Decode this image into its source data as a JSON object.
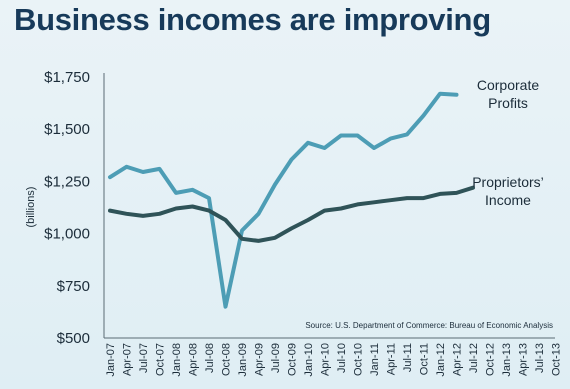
{
  "chart_data": {
    "type": "line",
    "title": "Business incomes are improving",
    "ylabel": "(billions)",
    "xlabel": "",
    "ylim": [
      500,
      1750
    ],
    "yticks": [
      "$500",
      "$750",
      "$1,000",
      "$1,250",
      "$1,500",
      "$1,750"
    ],
    "ytick_values": [
      500,
      750,
      1000,
      1250,
      1500,
      1750
    ],
    "categories": [
      "Jan-07",
      "Apr-07",
      "Jul-07",
      "Oct-07",
      "Jan-08",
      "Apr-08",
      "Jul-08",
      "Oct-08",
      "Jan-09",
      "Apr-09",
      "Jul-09",
      "Oct-09",
      "Jan-10",
      "Apr-10",
      "Jul-10",
      "Oct-10",
      "Jan-11",
      "Apr-11",
      "Jul-11",
      "Oct-11",
      "Jan-12",
      "Apr-12",
      "Jul-12",
      "Oct-12",
      "Jan-13",
      "Apr-13",
      "Jul-13",
      "Oct-13"
    ],
    "series": [
      {
        "name": "Corporate Profits",
        "label_lines": [
          "Corporate",
          "Profits"
        ],
        "color": "#4d9db5",
        "values": [
          1270,
          1320,
          1295,
          1310,
          1195,
          1210,
          1170,
          650,
          1015,
          1095,
          1235,
          1355,
          1435,
          1410,
          1470,
          1470,
          1410,
          1455,
          1475,
          1565,
          1670,
          1665,
          null,
          null,
          null,
          null,
          null,
          null
        ]
      },
      {
        "name": "Proprietors' Income",
        "label_lines": [
          "Proprietors’",
          "Income"
        ],
        "color": "#2f5358",
        "values": [
          1110,
          1095,
          1085,
          1095,
          1120,
          1130,
          1110,
          1065,
          975,
          965,
          980,
          1025,
          1065,
          1110,
          1120,
          1140,
          1150,
          1160,
          1170,
          1170,
          1190,
          1195,
          1220,
          null,
          null,
          null,
          null,
          null
        ]
      }
    ],
    "grid": false,
    "legend": "inline-right",
    "source": "Source: U.S. Department of Commerce: Bureau of Economic Analysis"
  }
}
